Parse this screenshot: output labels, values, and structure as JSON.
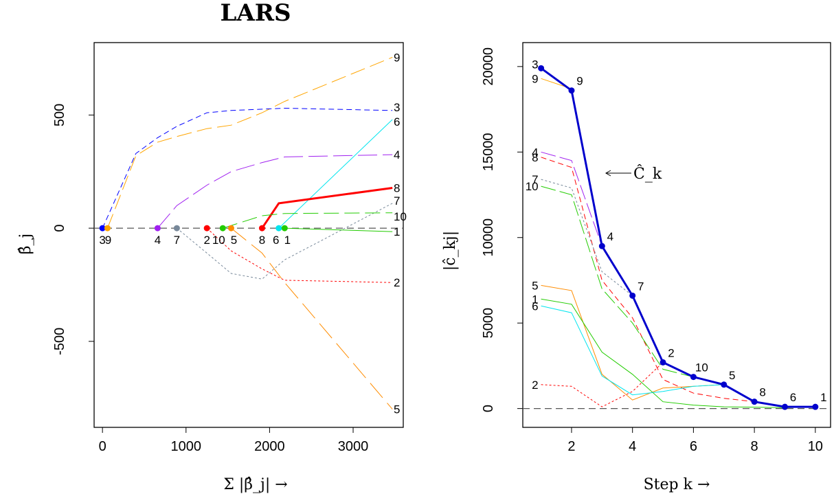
{
  "title": "LARS",
  "colors": {
    "v1": "#00cc00",
    "v2": "#ff0000",
    "v3": "#0000ff",
    "v4": "#a020f0",
    "v5": "#ff8c00",
    "v6": "#00e5ee",
    "v7": "#778899",
    "v8": "#ff0000",
    "v9": "#ffa500",
    "v10": "#22cc00",
    "dark": "#0000cc",
    "zero": "#555555"
  },
  "chart_data": [
    {
      "type": "line",
      "title": "LARS",
      "xlabel": "Σ |β̂_j| →",
      "ylabel": "β̂_j",
      "xlim": [
        -100,
        3600
      ],
      "ylim": [
        -880,
        820
      ],
      "xticks": [
        0,
        1000,
        2000,
        3000
      ],
      "xtick_labels": [
        "0",
        "1000",
        "2000",
        "3000"
      ],
      "yticks": [
        -500,
        0,
        500
      ],
      "ytick_labels": [
        "-500",
        "0",
        "500"
      ],
      "grid": false,
      "entry_points": [
        {
          "label": "3",
          "x": 0,
          "color": "v3"
        },
        {
          "label": "9",
          "x": 60,
          "color": "v9"
        },
        {
          "label": "4",
          "x": 660,
          "color": "v4"
        },
        {
          "label": "7",
          "x": 890,
          "color": "v7"
        },
        {
          "label": "2",
          "x": 1250,
          "color": "v2"
        },
        {
          "label": "10",
          "x": 1440,
          "color": "v10"
        },
        {
          "label": "5",
          "x": 1540,
          "color": "v5"
        },
        {
          "label": "8",
          "x": 1910,
          "color": "v8"
        },
        {
          "label": "6",
          "x": 2110,
          "color": "v6"
        },
        {
          "label": "1",
          "x": 2180,
          "color": "v10"
        }
      ],
      "series": [
        {
          "name": "9",
          "color": "v9",
          "dash": "22 8",
          "width": 1,
          "x": [
            60,
            400,
            660,
            890,
            1250,
            1540,
            1910,
            2180,
            3470
          ],
          "y": [
            0,
            320,
            380,
            405,
            440,
            455,
            510,
            560,
            755
          ]
        },
        {
          "name": "3",
          "color": "v3",
          "dash": "8 5",
          "width": 1,
          "x": [
            0,
            400,
            660,
            890,
            1250,
            1540,
            2180,
            3470
          ],
          "y": [
            0,
            330,
            400,
            450,
            510,
            520,
            530,
            520
          ]
        },
        {
          "name": "6",
          "color": "v6",
          "dash": "",
          "width": 1,
          "x": [
            2110,
            3470
          ],
          "y": [
            0,
            480
          ]
        },
        {
          "name": "4",
          "color": "v4",
          "dash": "28 8",
          "width": 1,
          "x": [
            660,
            890,
            1250,
            1540,
            1910,
            2180,
            3470
          ],
          "y": [
            0,
            100,
            190,
            250,
            290,
            315,
            325
          ]
        },
        {
          "name": "8",
          "color": "v8",
          "dash": "",
          "width": 3,
          "x": [
            1910,
            2110,
            3470
          ],
          "y": [
            0,
            110,
            178
          ]
        },
        {
          "name": "7",
          "color": "v7",
          "dash": "3 3",
          "width": 1,
          "x": [
            890,
            1250,
            1540,
            1910,
            2180,
            3470
          ],
          "y": [
            0,
            -110,
            -200,
            -225,
            -140,
            110
          ]
        },
        {
          "name": "10",
          "color": "v10",
          "dash": "22 8",
          "width": 1,
          "x": [
            1440,
            1910,
            2180,
            3470
          ],
          "y": [
            0,
            55,
            65,
            68
          ]
        },
        {
          "name": "1",
          "color": "v10",
          "dash": "",
          "width": 1,
          "x": [
            2180,
            3470
          ],
          "y": [
            0,
            -15
          ]
        },
        {
          "name": "2",
          "color": "v2",
          "dash": "3 3",
          "width": 1,
          "x": [
            1250,
            1540,
            1910,
            2180,
            3470
          ],
          "y": [
            0,
            -100,
            -180,
            -230,
            -240
          ]
        },
        {
          "name": "5",
          "color": "v5",
          "dash": "28 10",
          "width": 1,
          "x": [
            1540,
            1910,
            2180,
            3470
          ],
          "y": [
            0,
            -110,
            -240,
            -800
          ]
        }
      ],
      "end_labels": [
        {
          "text": "9",
          "y": 755
        },
        {
          "text": "3",
          "y": 522
        },
        {
          "text": "6",
          "y": 480
        },
        {
          "text": "4",
          "y": 325
        },
        {
          "text": "8",
          "y": 178
        },
        {
          "text": "7",
          "y": 110
        },
        {
          "text": "10",
          "y": 67
        },
        {
          "text": "1",
          "y": -15
        },
        {
          "text": "2",
          "y": -240
        },
        {
          "text": "5",
          "y": -800
        }
      ]
    },
    {
      "type": "line",
      "xlabel": "Step k →",
      "ylabel": "|ĉ_kj|",
      "xlim": [
        0.4,
        10.5
      ],
      "ylim": [
        -1100,
        21400
      ],
      "xticks": [
        2,
        4,
        6,
        8,
        10
      ],
      "xtick_labels": [
        "2",
        "4",
        "6",
        "8",
        "10"
      ],
      "yticks": [
        0,
        5000,
        10000,
        15000,
        20000
      ],
      "ytick_labels": [
        "0",
        "5000",
        "10000",
        "15000",
        "20000"
      ],
      "grid": false,
      "annotation": "Ĉ_k",
      "series": [
        {
          "name": "9",
          "color": "v9",
          "dash": "",
          "width": 1,
          "x": [
            1,
            2
          ],
          "y": [
            19300,
            18700
          ]
        },
        {
          "name": "4",
          "color": "v4",
          "dash": "22 6",
          "width": 1,
          "x": [
            1,
            2,
            3
          ],
          "y": [
            15000,
            14500,
            9500
          ]
        },
        {
          "name": "8",
          "color": "v8",
          "dash": "8 5",
          "width": 1,
          "x": [
            1,
            2,
            3,
            4,
            5,
            6,
            7,
            8
          ],
          "y": [
            14700,
            14100,
            7500,
            5300,
            1700,
            900,
            600,
            400
          ]
        },
        {
          "name": "7",
          "color": "v7",
          "dash": "3 3",
          "width": 1,
          "x": [
            1,
            2,
            3,
            4
          ],
          "y": [
            13400,
            12900,
            8000,
            6600
          ]
        },
        {
          "name": "10",
          "color": "v10",
          "dash": "22 6",
          "width": 1,
          "x": [
            1,
            2,
            3,
            4,
            5,
            6
          ],
          "y": [
            13000,
            12500,
            7000,
            5000,
            2300,
            1850
          ]
        },
        {
          "name": "5",
          "color": "v5",
          "dash": "",
          "width": 1,
          "x": [
            1,
            2,
            3,
            4,
            5,
            6,
            7
          ],
          "y": [
            7200,
            6900,
            2000,
            500,
            1200,
            1300,
            1400
          ]
        },
        {
          "name": "1",
          "color": "v10",
          "dash": "",
          "width": 1,
          "x": [
            1,
            2,
            3,
            4,
            5,
            6,
            7,
            8,
            9,
            10
          ],
          "y": [
            6400,
            6100,
            3300,
            2000,
            400,
            200,
            100,
            80,
            50,
            100
          ]
        },
        {
          "name": "6",
          "color": "v6",
          "dash": "",
          "width": 1,
          "x": [
            1,
            2,
            3,
            4,
            5,
            6,
            7,
            8,
            9
          ],
          "y": [
            6000,
            5600,
            1900,
            800,
            1000,
            1300,
            1400,
            400,
            100
          ]
        },
        {
          "name": "2",
          "color": "v2",
          "dash": "3 3",
          "width": 1,
          "x": [
            1,
            2,
            3,
            4,
            5
          ],
          "y": [
            1400,
            1300,
            100,
            1000,
            2700
          ]
        },
        {
          "name": "Ĉ_k",
          "color": "dark",
          "dash": "",
          "width": 3,
          "x": [
            1,
            2,
            3,
            4,
            5,
            6,
            7,
            8,
            9,
            10
          ],
          "y": [
            19900,
            18600,
            9500,
            6600,
            2700,
            1850,
            1400,
            400,
            100,
            100
          ]
        }
      ],
      "start_labels": [
        {
          "text": "3",
          "y": 19900
        },
        {
          "text": "9",
          "y": 19300
        },
        {
          "text": "4",
          "y": 15000
        },
        {
          "text": "8",
          "y": 14700
        },
        {
          "text": "7",
          "y": 13400
        },
        {
          "text": "10",
          "y": 13000
        },
        {
          "text": "5",
          "y": 7200
        },
        {
          "text": "1",
          "y": 6400
        },
        {
          "text": "6",
          "y": 6000
        },
        {
          "text": "2",
          "y": 1400
        }
      ],
      "step_labels": [
        "9",
        "4",
        "7",
        "2",
        "10",
        "5",
        "8",
        "6",
        "1"
      ]
    }
  ]
}
